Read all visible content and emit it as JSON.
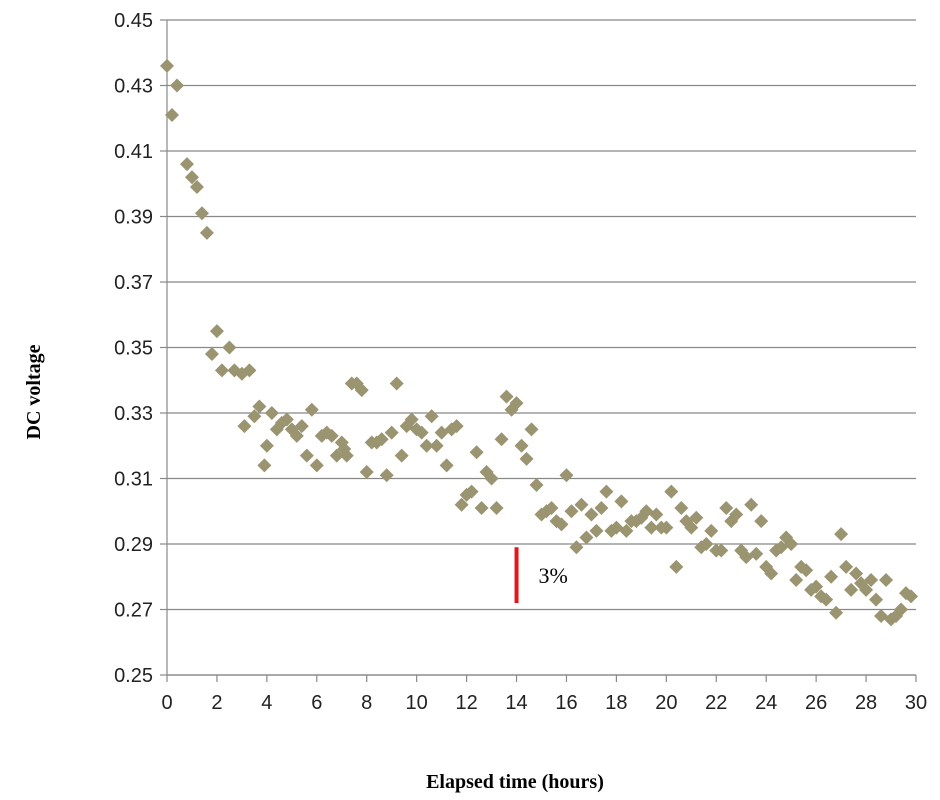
{
  "chart_data": {
    "type": "scatter",
    "title": "",
    "xlabel": "Elapsed time (hours)",
    "ylabel": "DC voltage",
    "xlim": [
      0,
      30
    ],
    "ylim": [
      0.25,
      0.45
    ],
    "x_ticks": [
      "0",
      "2",
      "4",
      "6",
      "8",
      "10",
      "12",
      "14",
      "16",
      "18",
      "20",
      "22",
      "24",
      "26",
      "28",
      "30"
    ],
    "y_ticks": [
      "0.25",
      "0.27",
      "0.29",
      "0.31",
      "0.33",
      "0.35",
      "0.37",
      "0.39",
      "0.41",
      "0.43",
      "0.45"
    ],
    "grid": "horizontal",
    "marker": "diamond",
    "colors": {
      "points": "#9a9470",
      "annotation": "#e8141b",
      "grid": "#888888"
    },
    "annotation": {
      "text": "3%",
      "x": 14,
      "y_from": 0.272,
      "y_to": 0.289
    },
    "series": [
      {
        "points": [
          [
            0.0,
            0.436
          ],
          [
            0.2,
            0.421
          ],
          [
            0.4,
            0.43
          ],
          [
            0.8,
            0.406
          ],
          [
            1.0,
            0.402
          ],
          [
            1.2,
            0.399
          ],
          [
            1.4,
            0.391
          ],
          [
            1.6,
            0.385
          ],
          [
            1.8,
            0.348
          ],
          [
            2.0,
            0.355
          ],
          [
            2.2,
            0.343
          ],
          [
            2.5,
            0.35
          ],
          [
            2.7,
            0.343
          ],
          [
            3.0,
            0.342
          ],
          [
            3.1,
            0.326
          ],
          [
            3.3,
            0.343
          ],
          [
            3.5,
            0.329
          ],
          [
            3.7,
            0.332
          ],
          [
            3.9,
            0.314
          ],
          [
            4.0,
            0.32
          ],
          [
            4.2,
            0.33
          ],
          [
            4.4,
            0.325
          ],
          [
            4.6,
            0.327
          ],
          [
            4.8,
            0.328
          ],
          [
            5.0,
            0.325
          ],
          [
            5.2,
            0.323
          ],
          [
            5.4,
            0.326
          ],
          [
            5.6,
            0.317
          ],
          [
            5.8,
            0.331
          ],
          [
            6.0,
            0.314
          ],
          [
            6.2,
            0.323
          ],
          [
            6.4,
            0.324
          ],
          [
            6.6,
            0.323
          ],
          [
            6.8,
            0.317
          ],
          [
            7.0,
            0.321
          ],
          [
            7.1,
            0.319
          ],
          [
            7.2,
            0.317
          ],
          [
            7.4,
            0.339
          ],
          [
            7.6,
            0.339
          ],
          [
            7.8,
            0.337
          ],
          [
            8.0,
            0.312
          ],
          [
            8.2,
            0.321
          ],
          [
            8.4,
            0.321
          ],
          [
            8.6,
            0.322
          ],
          [
            8.8,
            0.311
          ],
          [
            9.0,
            0.324
          ],
          [
            9.2,
            0.339
          ],
          [
            9.4,
            0.317
          ],
          [
            9.6,
            0.326
          ],
          [
            9.8,
            0.328
          ],
          [
            10.0,
            0.325
          ],
          [
            10.2,
            0.324
          ],
          [
            10.4,
            0.32
          ],
          [
            10.6,
            0.329
          ],
          [
            10.8,
            0.32
          ],
          [
            11.0,
            0.324
          ],
          [
            11.2,
            0.314
          ],
          [
            11.4,
            0.325
          ],
          [
            11.6,
            0.326
          ],
          [
            11.8,
            0.302
          ],
          [
            12.0,
            0.305
          ],
          [
            12.2,
            0.306
          ],
          [
            12.4,
            0.318
          ],
          [
            12.6,
            0.301
          ],
          [
            12.8,
            0.312
          ],
          [
            13.0,
            0.31
          ],
          [
            13.2,
            0.301
          ],
          [
            13.4,
            0.322
          ],
          [
            13.6,
            0.335
          ],
          [
            13.8,
            0.331
          ],
          [
            14.0,
            0.333
          ],
          [
            14.2,
            0.32
          ],
          [
            14.4,
            0.316
          ],
          [
            14.6,
            0.325
          ],
          [
            14.8,
            0.308
          ],
          [
            15.0,
            0.299
          ],
          [
            15.2,
            0.3
          ],
          [
            15.4,
            0.301
          ],
          [
            15.6,
            0.297
          ],
          [
            15.8,
            0.296
          ],
          [
            16.0,
            0.311
          ],
          [
            16.2,
            0.3
          ],
          [
            16.4,
            0.289
          ],
          [
            16.6,
            0.302
          ],
          [
            16.8,
            0.292
          ],
          [
            17.0,
            0.299
          ],
          [
            17.2,
            0.294
          ],
          [
            17.4,
            0.301
          ],
          [
            17.6,
            0.306
          ],
          [
            17.8,
            0.294
          ],
          [
            18.0,
            0.295
          ],
          [
            18.2,
            0.303
          ],
          [
            18.4,
            0.294
          ],
          [
            18.6,
            0.297
          ],
          [
            18.8,
            0.297
          ],
          [
            19.0,
            0.298
          ],
          [
            19.2,
            0.3
          ],
          [
            19.4,
            0.295
          ],
          [
            19.6,
            0.299
          ],
          [
            19.8,
            0.295
          ],
          [
            20.0,
            0.295
          ],
          [
            20.2,
            0.306
          ],
          [
            20.4,
            0.283
          ],
          [
            20.6,
            0.301
          ],
          [
            20.8,
            0.297
          ],
          [
            21.0,
            0.295
          ],
          [
            21.2,
            0.298
          ],
          [
            21.4,
            0.289
          ],
          [
            21.6,
            0.29
          ],
          [
            21.8,
            0.294
          ],
          [
            22.0,
            0.288
          ],
          [
            22.2,
            0.288
          ],
          [
            22.4,
            0.301
          ],
          [
            22.6,
            0.297
          ],
          [
            22.8,
            0.299
          ],
          [
            23.0,
            0.288
          ],
          [
            23.2,
            0.286
          ],
          [
            23.4,
            0.302
          ],
          [
            23.6,
            0.287
          ],
          [
            23.8,
            0.297
          ],
          [
            24.0,
            0.283
          ],
          [
            24.2,
            0.281
          ],
          [
            24.4,
            0.288
          ],
          [
            24.6,
            0.289
          ],
          [
            24.8,
            0.292
          ],
          [
            25.0,
            0.29
          ],
          [
            25.2,
            0.279
          ],
          [
            25.4,
            0.283
          ],
          [
            25.6,
            0.282
          ],
          [
            25.8,
            0.276
          ],
          [
            26.0,
            0.277
          ],
          [
            26.2,
            0.274
          ],
          [
            26.4,
            0.273
          ],
          [
            26.6,
            0.28
          ],
          [
            26.8,
            0.269
          ],
          [
            27.0,
            0.293
          ],
          [
            27.2,
            0.283
          ],
          [
            27.4,
            0.276
          ],
          [
            27.6,
            0.281
          ],
          [
            27.8,
            0.278
          ],
          [
            28.0,
            0.276
          ],
          [
            28.2,
            0.279
          ],
          [
            28.4,
            0.273
          ],
          [
            28.6,
            0.268
          ],
          [
            28.8,
            0.279
          ],
          [
            29.0,
            0.267
          ],
          [
            29.2,
            0.268
          ],
          [
            29.4,
            0.27
          ],
          [
            29.6,
            0.275
          ],
          [
            29.8,
            0.274
          ]
        ]
      }
    ]
  }
}
